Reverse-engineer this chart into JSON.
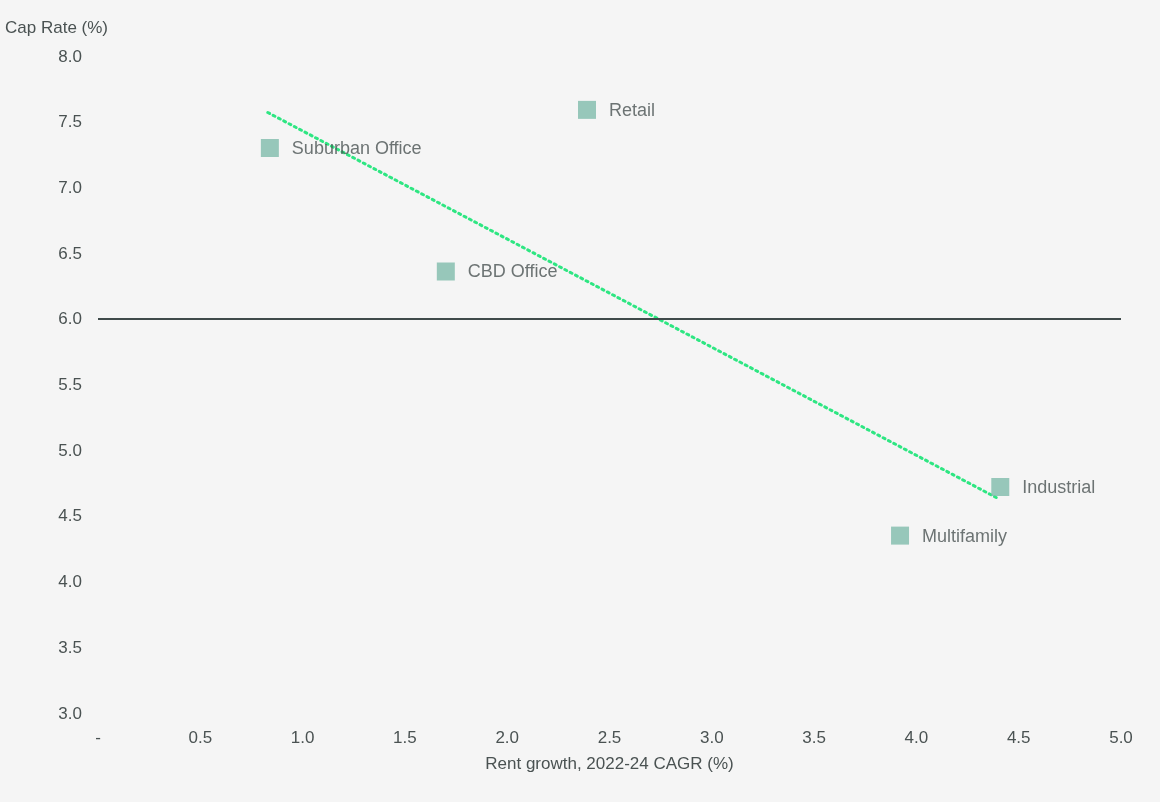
{
  "chart_data": {
    "type": "scatter",
    "xlabel": "Rent growth, 2022-24 CAGR (%)",
    "ylabel": "Cap Rate (%)",
    "xlim": [
      0,
      5
    ],
    "xticks": [
      {
        "value": 0,
        "label": "-"
      },
      0.5,
      {
        "value": 1,
        "label": "1.0"
      },
      1.5,
      {
        "value": 2,
        "label": "2.0"
      },
      2.5,
      {
        "value": 3,
        "label": "3.0"
      },
      3.5,
      {
        "value": 4,
        "label": "4.0"
      },
      4.5,
      {
        "value": 5,
        "label": "5.0"
      }
    ],
    "ylim": [
      3,
      8
    ],
    "yticks": [
      {
        "value": 3,
        "label": "3.0"
      },
      3.5,
      {
        "value": 4,
        "label": "4.0"
      },
      4.5,
      {
        "value": 5,
        "label": "5.0"
      },
      5.5,
      {
        "value": 6,
        "label": "6.0"
      },
      6.5,
      {
        "value": 7,
        "label": "7.0"
      },
      7.5,
      {
        "value": 8,
        "label": "8.0"
      }
    ],
    "grid": false,
    "marker": "square",
    "series": [
      {
        "color": "#7fbcab",
        "x": [
          0.84,
          2.39,
          1.7,
          4.41,
          3.92
        ],
        "values": [
          7.3,
          7.59,
          6.36,
          4.72,
          4.35
        ]
      },
      {
        "type": "line",
        "color": "#2ee682",
        "line_style": "dotted",
        "marker": "none",
        "x": [
          0.83,
          4.39
        ],
        "values": [
          7.57,
          4.64
        ]
      }
    ],
    "ref_lines": [
      {
        "axis": "y",
        "value": 6.0,
        "color": "#3f4a4a"
      }
    ],
    "annotations": [
      {
        "text": "Suburban Office",
        "x": 0.84,
        "y": 7.3
      },
      {
        "text": "Retail",
        "x": 2.39,
        "y": 7.59
      },
      {
        "text": "CBD Office",
        "x": 1.7,
        "y": 6.36
      },
      {
        "text": "Industrial",
        "x": 4.41,
        "y": 4.72
      },
      {
        "text": "Multifamily",
        "x": 3.92,
        "y": 4.35
      }
    ]
  }
}
